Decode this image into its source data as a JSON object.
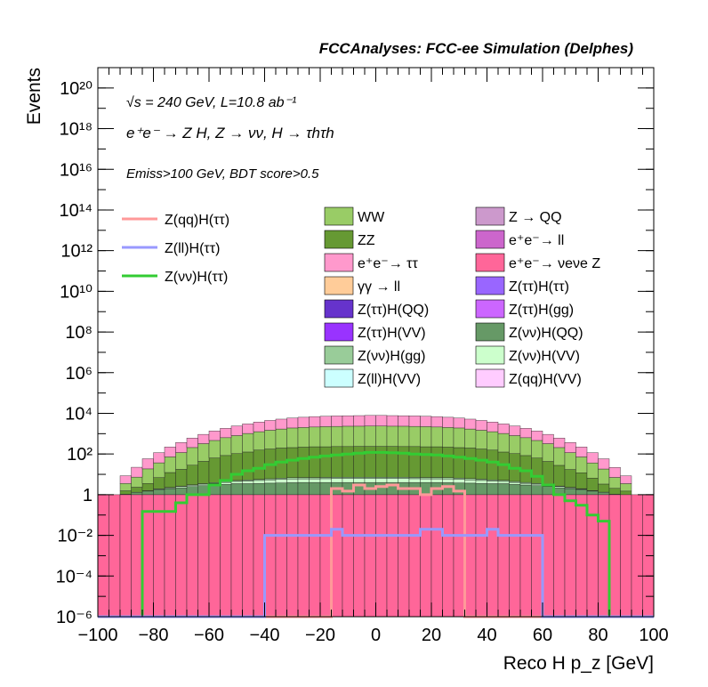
{
  "chart_data": {
    "type": "stacked-histogram",
    "title": "FCCAnalyses: FCC-ee Simulation (Delphes)",
    "xlabel": "Reco H p_z [GeV]",
    "ylabel": "Events",
    "xlim": [
      -100,
      100
    ],
    "ylim": [
      1e-06,
      1e+21
    ],
    "yscale": "log",
    "grid": false,
    "bin_width": 4,
    "annotations": {
      "energy_lumi": "√s = 240 GeV, L=10.8 ab⁻¹",
      "process": "e⁺e⁻ → Z H, Z → νν, H → τhτh",
      "selection": "Emiss>100 GeV, BDT score>0.5"
    },
    "x_ticks": [
      -100,
      -80,
      -60,
      -40,
      -20,
      0,
      20,
      40,
      60,
      80,
      100
    ],
    "x_tick_labels": [
      "−100",
      "−80",
      "−60",
      "−40",
      "−20",
      "0",
      "20",
      "40",
      "60",
      "80",
      "100"
    ],
    "y_ticks": [
      1e-06,
      0.0001,
      0.01,
      1,
      100.0,
      10000.0,
      1000000.0,
      100000000.0,
      10000000000.0,
      1000000000000.0,
      100000000000000.0,
      1e+16,
      1e+18,
      1e+20
    ],
    "y_tick_labels": [
      "10⁻⁶",
      "10⁻⁴",
      "10⁻²",
      "1",
      "10²",
      "10⁴",
      "10⁶",
      "10⁸",
      "10¹⁰",
      "10¹²",
      "10¹⁴",
      "10¹⁶",
      "10¹⁸",
      "10²⁰"
    ],
    "legend_lines": [
      {
        "name": "Z(qq)H(ττ)",
        "color": "#ff9999"
      },
      {
        "name": "Z(ll)H(ττ)",
        "color": "#9999ff"
      },
      {
        "name": "Z(νν)H(ττ)",
        "color": "#33cc33"
      }
    ],
    "legend_fills": [
      {
        "name": "WW",
        "color": "#99cc66"
      },
      {
        "name": "Z → QQ",
        "color": "#cc99cc"
      },
      {
        "name": "ZZ",
        "color": "#669933"
      },
      {
        "name": "e⁺e⁻→ ll",
        "color": "#cc66cc"
      },
      {
        "name": "e⁺e⁻→ ττ",
        "color": "#ff99cc"
      },
      {
        "name": "e⁺e⁻→ νeνe Z",
        "color": "#ff6699"
      },
      {
        "name": "γγ → ll",
        "color": "#ffcc99"
      },
      {
        "name": "Z(ττ)H(ττ)",
        "color": "#9966ff"
      },
      {
        "name": "Z(ττ)H(QQ)",
        "color": "#6633cc"
      },
      {
        "name": "Z(ττ)H(gg)",
        "color": "#cc66ff"
      },
      {
        "name": "Z(ττ)H(VV)",
        "color": "#9933ff"
      },
      {
        "name": "Z(νν)H(QQ)",
        "color": "#669966"
      },
      {
        "name": "Z(νν)H(gg)",
        "color": "#99cc99"
      },
      {
        "name": "Z(νν)H(VV)",
        "color": "#ccffcc"
      },
      {
        "name": "Z(ll)H(VV)",
        "color": "#ccffff"
      },
      {
        "name": "Z(qq)H(VV)",
        "color": "#ffccff"
      }
    ],
    "stack": [
      {
        "name": "e⁺e⁻→ νeνe Z",
        "color": "#ff6699",
        "values": [
          1,
          1,
          1,
          1,
          1,
          1,
          1,
          1,
          1,
          1,
          1,
          1,
          1,
          1,
          1,
          1,
          1,
          1,
          1,
          1,
          1,
          1,
          1,
          1,
          1,
          1,
          1,
          1,
          1,
          1,
          1,
          1,
          1,
          1,
          1,
          1,
          1,
          1,
          1,
          1,
          1,
          1,
          1,
          1,
          1,
          1,
          1,
          1,
          1,
          1
        ]
      },
      {
        "name": "Z(νν)H(QQ)",
        "color": "#669966",
        "values": [
          0,
          0,
          0.05,
          0.3,
          0.5,
          0.8,
          1,
          1.2,
          1.5,
          1.8,
          2,
          2.2,
          2.5,
          2.5,
          2.6,
          2.7,
          2.8,
          2.9,
          3,
          3,
          3,
          3,
          3,
          3,
          3,
          3,
          3,
          3,
          3,
          3,
          3,
          2.9,
          2.8,
          2.7,
          2.6,
          2.5,
          2.5,
          2.2,
          2,
          1.8,
          1.5,
          1.2,
          1,
          0.8,
          0.5,
          0.3,
          0.05,
          0,
          0,
          0
        ]
      },
      {
        "name": "Z(νν)H(VV)",
        "color": "#ccffcc",
        "values": [
          0,
          0,
          0,
          0.02,
          0.05,
          0.1,
          0.2,
          0.3,
          0.4,
          0.5,
          0.6,
          0.8,
          1,
          1.2,
          1.4,
          1.6,
          1.8,
          2,
          2,
          2,
          2.1,
          2.2,
          2.2,
          2.2,
          2.2,
          2.2,
          2.2,
          2.2,
          2.1,
          2,
          2,
          2,
          1.8,
          1.6,
          1.4,
          1.2,
          1,
          0.8,
          0.6,
          0.5,
          0.4,
          0.3,
          0.2,
          0.1,
          0.05,
          0.02,
          0,
          0,
          0,
          0
        ]
      },
      {
        "name": "Z(νν)H(gg)",
        "color": "#99cc99",
        "values": [
          0,
          0,
          0,
          0,
          0.01,
          0.03,
          0.08,
          0.1,
          0.15,
          0.2,
          0.3,
          0.4,
          0.5,
          0.6,
          0.7,
          0.8,
          0.9,
          1,
          1,
          1,
          1,
          1,
          1,
          1,
          1,
          1,
          1,
          1,
          1,
          1,
          1,
          1,
          1,
          0.9,
          0.8,
          0.7,
          0.6,
          0.5,
          0.4,
          0.3,
          0.2,
          0.15,
          0.1,
          0.08,
          0.03,
          0.01,
          0,
          0,
          0,
          0
        ]
      },
      {
        "name": "ZZ",
        "color": "#669933",
        "values": [
          0,
          0,
          0.5,
          1,
          2,
          5,
          10,
          15,
          25,
          40,
          60,
          80,
          100,
          120,
          150,
          170,
          190,
          200,
          210,
          220,
          220,
          225,
          225,
          230,
          230,
          230,
          230,
          225,
          225,
          220,
          220,
          210,
          200,
          190,
          170,
          150,
          120,
          100,
          80,
          60,
          40,
          25,
          15,
          10,
          5,
          2,
          1,
          0.5,
          0,
          0
        ]
      },
      {
        "name": "WW",
        "color": "#99cc66",
        "values": [
          0,
          0,
          2,
          5,
          15,
          30,
          60,
          100,
          180,
          280,
          400,
          550,
          700,
          900,
          1100,
          1300,
          1500,
          1700,
          1800,
          1900,
          2000,
          2050,
          2100,
          2100,
          2150,
          2150,
          2100,
          2100,
          2050,
          2000,
          1900,
          1800,
          1700,
          1500,
          1300,
          1100,
          900,
          700,
          550,
          400,
          280,
          180,
          100,
          60,
          30,
          15,
          5,
          2,
          0,
          0
        ]
      },
      {
        "name": "e⁺e⁻→ ττ",
        "color": "#ff99cc",
        "values": [
          0,
          0,
          5,
          15,
          40,
          80,
          150,
          250,
          400,
          600,
          900,
          1200,
          1600,
          2000,
          2500,
          3000,
          3500,
          4000,
          4400,
          4800,
          5000,
          5200,
          5300,
          5400,
          5500,
          5500,
          5400,
          5300,
          5200,
          5000,
          4800,
          4400,
          4000,
          3500,
          3000,
          2500,
          2000,
          1600,
          1200,
          900,
          600,
          400,
          250,
          150,
          80,
          40,
          15,
          5,
          0,
          0
        ]
      }
    ],
    "lines": [
      {
        "name": "Z(νν)H(ττ)",
        "color": "#33cc33",
        "values": [
          0,
          0,
          0,
          0,
          0.15,
          0.15,
          0.15,
          0.4,
          1,
          1,
          3,
          5,
          10,
          15,
          20,
          30,
          40,
          50,
          60,
          70,
          80,
          90,
          100,
          110,
          120,
          120,
          115,
          110,
          100,
          95,
          90,
          80,
          70,
          60,
          50,
          40,
          30,
          20,
          15,
          8,
          3,
          1,
          0.5,
          0.3,
          0.1,
          0.05,
          0,
          0,
          0,
          0
        ]
      },
      {
        "name": "Z(qq)H(ττ)",
        "color": "#ff9999",
        "values": [
          0,
          0,
          0,
          0,
          0,
          0,
          0,
          0,
          0,
          0,
          0,
          0,
          0,
          0,
          0,
          0,
          0,
          0,
          0,
          0,
          0,
          2,
          1.5,
          3,
          2,
          2.5,
          3,
          2,
          2,
          1,
          2,
          2.5,
          1.5,
          0,
          0,
          0,
          0,
          0,
          0,
          0,
          0,
          0,
          0,
          0,
          0,
          0,
          0,
          0,
          0,
          0
        ]
      },
      {
        "name": "Z(ll)H(ττ)",
        "color": "#9999ff",
        "values": [
          0,
          0,
          0,
          0,
          0,
          0,
          0,
          0,
          0,
          0,
          0,
          0,
          0,
          0,
          0,
          0.01,
          0.01,
          0.01,
          0.01,
          0.01,
          0.01,
          0.02,
          0.01,
          0.01,
          0.01,
          0.01,
          0.01,
          0.01,
          0.01,
          0.02,
          0.02,
          0.01,
          0.01,
          0.01,
          0.01,
          0.02,
          0.01,
          0.01,
          0.01,
          0.01,
          0,
          0,
          0,
          0,
          0,
          0,
          0,
          0,
          0,
          0
        ]
      }
    ]
  }
}
